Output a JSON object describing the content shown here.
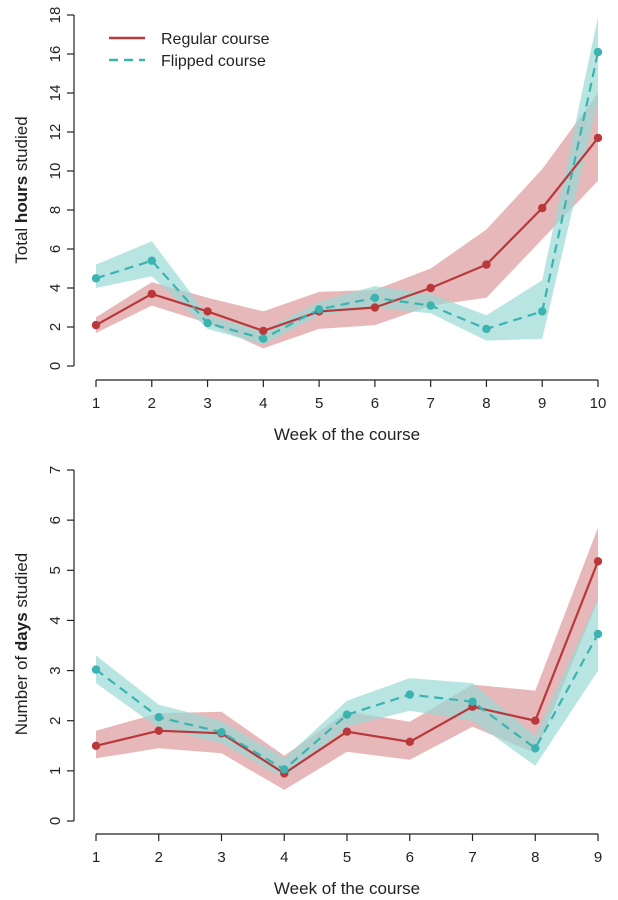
{
  "colors": {
    "regular": "#b8383b",
    "regular_band": "#dc9a9b",
    "flipped": "#3bb3b0",
    "flipped_band": "#9ad8d6"
  },
  "legend": {
    "regular_label": "Regular course",
    "flipped_label": "Flipped course",
    "placement": "top-left"
  },
  "chart_data": [
    {
      "type": "line",
      "title": "",
      "xlabel": "Week of the course",
      "ylabel_pre": "Total ",
      "ylabel_bold": "hours",
      "ylabel_post": " studied",
      "x": [
        1,
        2,
        3,
        4,
        5,
        6,
        7,
        8,
        9,
        10
      ],
      "xlim": [
        1,
        10
      ],
      "ylim": [
        0,
        18
      ],
      "yticks": [
        0,
        2,
        4,
        6,
        8,
        10,
        12,
        14,
        16,
        18
      ],
      "grid": false,
      "series": [
        {
          "name": "Regular course",
          "key": "regular",
          "style": "solid",
          "values": [
            2.1,
            3.7,
            2.8,
            1.8,
            2.8,
            3.0,
            4.0,
            5.2,
            8.1,
            11.7
          ],
          "lower": [
            1.7,
            3.1,
            2.2,
            0.9,
            1.9,
            2.1,
            3.1,
            3.5,
            6.5,
            9.5
          ],
          "upper": [
            2.5,
            4.3,
            3.5,
            2.8,
            3.8,
            3.9,
            5.0,
            7.0,
            10.1,
            14.0
          ]
        },
        {
          "name": "Flipped course",
          "key": "flipped",
          "style": "dashed",
          "values": [
            4.5,
            5.4,
            2.2,
            1.4,
            2.9,
            3.5,
            3.1,
            1.9,
            2.8,
            16.1
          ],
          "lower": [
            4.0,
            4.6,
            1.9,
            1.1,
            2.6,
            3.0,
            2.7,
            1.3,
            1.4,
            13.6
          ],
          "upper": [
            5.2,
            6.4,
            2.6,
            1.8,
            3.3,
            4.1,
            3.7,
            2.6,
            4.4,
            17.9
          ]
        }
      ]
    },
    {
      "type": "line",
      "title": "",
      "xlabel": "Week of the course",
      "ylabel_pre": "Number of ",
      "ylabel_bold": "days",
      "ylabel_post": " studied",
      "x": [
        1,
        2,
        3,
        4,
        5,
        6,
        7,
        8,
        9
      ],
      "xlim": [
        1,
        9
      ],
      "ylim": [
        0,
        7
      ],
      "yticks": [
        0,
        1,
        2,
        3,
        4,
        5,
        6,
        7
      ],
      "grid": false,
      "series": [
        {
          "name": "Regular course",
          "key": "regular",
          "style": "solid",
          "values": [
            1.5,
            1.8,
            1.75,
            0.95,
            1.78,
            1.58,
            2.28,
            2.0,
            5.18
          ],
          "lower": [
            1.25,
            1.45,
            1.35,
            0.62,
            1.38,
            1.22,
            1.88,
            1.35,
            4.4
          ],
          "upper": [
            1.8,
            2.15,
            2.18,
            1.3,
            2.18,
            1.98,
            2.72,
            2.6,
            5.85
          ]
        },
        {
          "name": "Flipped course",
          "key": "flipped",
          "style": "dashed",
          "values": [
            3.02,
            2.07,
            1.77,
            1.03,
            2.12,
            2.52,
            2.38,
            1.45,
            3.73
          ],
          "lower": [
            2.75,
            1.85,
            1.55,
            0.85,
            1.88,
            2.2,
            2.0,
            1.1,
            3.0
          ],
          "upper": [
            3.3,
            2.32,
            2.0,
            1.25,
            2.4,
            2.85,
            2.75,
            1.7,
            4.45
          ]
        }
      ]
    }
  ]
}
